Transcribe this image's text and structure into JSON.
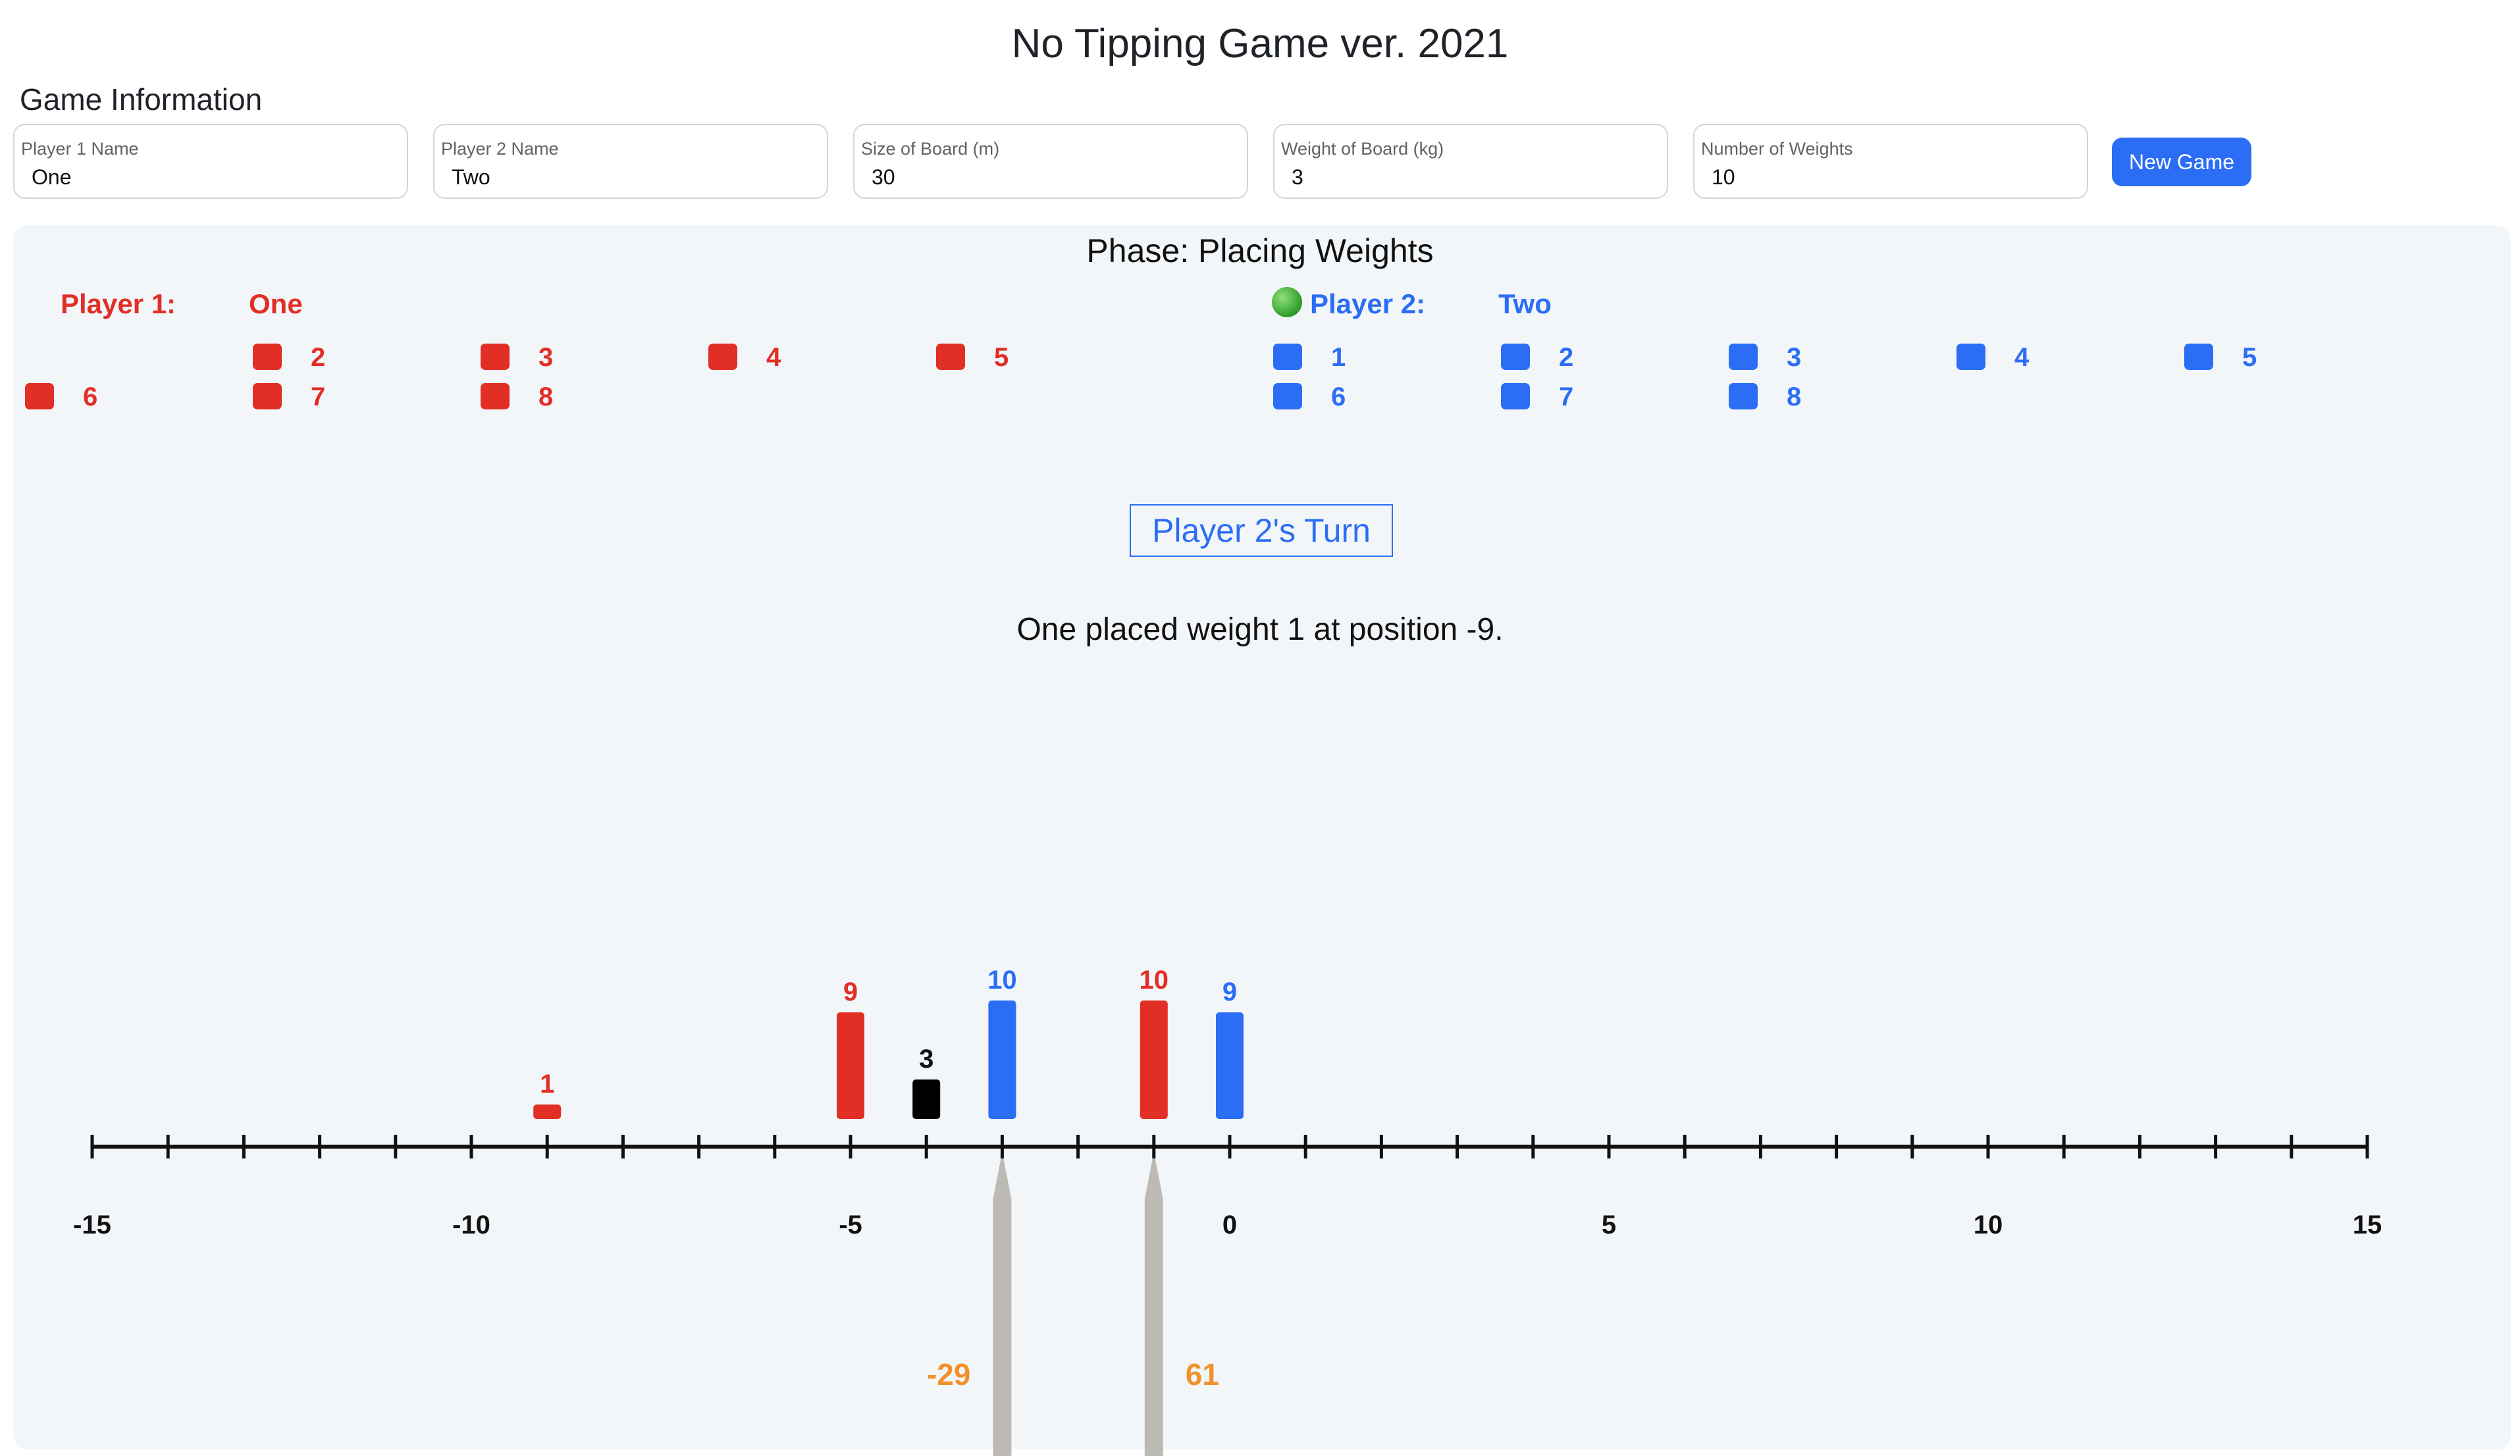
{
  "title": "No Tipping Game ver. 2021",
  "game_info": {
    "heading": "Game Information",
    "fields": [
      {
        "label": "Player 1 Name",
        "value": "One"
      },
      {
        "label": "Player 2 Name",
        "value": "Two"
      },
      {
        "label": "Size of Board (m)",
        "value": "30"
      },
      {
        "label": "Weight of Board (kg)",
        "value": "3"
      },
      {
        "label": "Number of Weights",
        "value": "10"
      }
    ],
    "new_game_label": "New Game"
  },
  "phase": "Phase: Placing Weights",
  "players": {
    "p1": {
      "label": "Player 1:",
      "name": "One",
      "color": "#e12f26",
      "remaining_weights": [
        "2",
        "3",
        "4",
        "5",
        "6",
        "7",
        "8"
      ]
    },
    "p2": {
      "label": "Player 2:",
      "name": "Two",
      "color": "#2b6ef5",
      "remaining_weights": [
        "1",
        "2",
        "3",
        "4",
        "5",
        "6",
        "7",
        "8"
      ],
      "active_indicator": "green-dot-icon"
    }
  },
  "turn_text": "Player 2's Turn",
  "status_message": "One placed weight 1 at position -9.",
  "board": {
    "min": -15,
    "max": 15,
    "tick_labels": [
      "-15",
      "-10",
      "-5",
      "0",
      "5",
      "10",
      "15"
    ],
    "tick_label_values": [
      -15,
      -10,
      -5,
      0,
      5,
      10,
      15
    ],
    "weights": [
      {
        "position": -9,
        "weight": 1,
        "label": "1",
        "owner": "p1",
        "color": "#e12f26"
      },
      {
        "position": -5,
        "weight": 9,
        "label": "9",
        "owner": "p1",
        "color": "#e12f26"
      },
      {
        "position": -4,
        "weight": 3,
        "label": "3",
        "owner": "board",
        "color": "#000000"
      },
      {
        "position": -3,
        "weight": 10,
        "label": "10",
        "owner": "p2",
        "color": "#2b6ef5"
      },
      {
        "position": -1,
        "weight": 10,
        "label": "10",
        "owner": "p1",
        "color": "#e12f26"
      },
      {
        "position": 0,
        "weight": 9,
        "label": "9",
        "owner": "p2",
        "color": "#2b6ef5"
      }
    ],
    "supports": [
      {
        "position": -3,
        "torque": "-29"
      },
      {
        "position": -1,
        "torque": "61"
      }
    ],
    "torque_color": "#f0922b",
    "support_color": "#bdbab6"
  }
}
